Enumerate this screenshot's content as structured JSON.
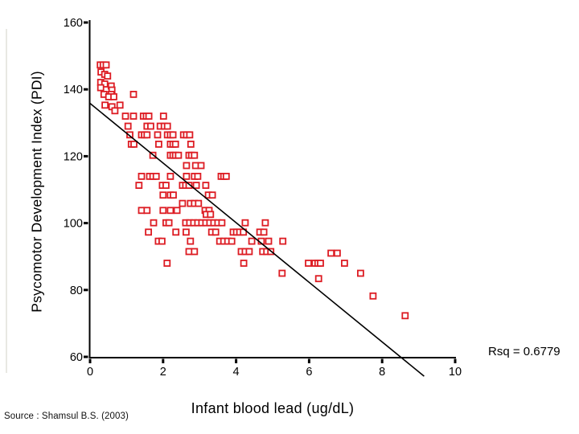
{
  "page": {
    "source_note": "Source : Shamsul B.S. (2003)",
    "background": "#ffffff"
  },
  "chart_data": {
    "type": "scatter",
    "title": "",
    "xlabel": "Infant blood lead (ug/dL)",
    "ylabel": "Psycomotor Development Index (PDI)",
    "annotation": "Rsq = 0.6779",
    "xlim": [
      0,
      10
    ],
    "ylim": [
      60,
      160
    ],
    "xticks": [
      0,
      2,
      4,
      6,
      8,
      10
    ],
    "yticks": [
      60,
      80,
      100,
      120,
      140,
      160
    ],
    "grid": "off",
    "legend": "none",
    "marker": {
      "shape": "open-square",
      "color": "#dd1c23",
      "fill": "#ffffff",
      "size": 7
    },
    "axis_color": "#000000",
    "regression_line": {
      "x": [
        0,
        9.15
      ],
      "y": [
        135.8,
        54.2
      ],
      "color": "#000000"
    },
    "points": [
      [
        0.28,
        147.3
      ],
      [
        0.36,
        147.3
      ],
      [
        0.44,
        147.3
      ],
      [
        0.3,
        145.2
      ],
      [
        0.4,
        144.5
      ],
      [
        0.48,
        144.0
      ],
      [
        0.29,
        142.1
      ],
      [
        0.4,
        141.6
      ],
      [
        0.58,
        141.0
      ],
      [
        0.29,
        140.5
      ],
      [
        0.6,
        139.8
      ],
      [
        0.38,
        138.5
      ],
      [
        0.58,
        138.5
      ],
      [
        1.19,
        138.5
      ],
      [
        0.51,
        137.8
      ],
      [
        0.65,
        137.8
      ],
      [
        0.41,
        135.3
      ],
      [
        0.82,
        135.3
      ],
      [
        0.6,
        134.8
      ],
      [
        0.68,
        133.6
      ],
      [
        0.97,
        132.0
      ],
      [
        1.19,
        132.0
      ],
      [
        1.46,
        132.0
      ],
      [
        1.54,
        132.0
      ],
      [
        1.61,
        132.0
      ],
      [
        2.01,
        132.0
      ],
      [
        1.04,
        129.0
      ],
      [
        1.56,
        129.0
      ],
      [
        1.66,
        129.0
      ],
      [
        1.92,
        129.0
      ],
      [
        2.03,
        129.0
      ],
      [
        2.12,
        129.0
      ],
      [
        1.09,
        126.4
      ],
      [
        1.41,
        126.4
      ],
      [
        1.49,
        126.4
      ],
      [
        1.56,
        126.4
      ],
      [
        1.85,
        126.4
      ],
      [
        2.12,
        126.4
      ],
      [
        2.2,
        126.4
      ],
      [
        2.27,
        126.4
      ],
      [
        2.56,
        126.4
      ],
      [
        2.64,
        126.4
      ],
      [
        2.73,
        126.4
      ],
      [
        1.13,
        123.6
      ],
      [
        1.2,
        123.6
      ],
      [
        1.88,
        123.6
      ],
      [
        2.2,
        123.6
      ],
      [
        2.27,
        123.6
      ],
      [
        2.34,
        123.6
      ],
      [
        2.76,
        123.6
      ],
      [
        1.72,
        120.3
      ],
      [
        2.2,
        120.3
      ],
      [
        2.27,
        120.3
      ],
      [
        2.34,
        120.3
      ],
      [
        2.42,
        120.3
      ],
      [
        2.71,
        120.3
      ],
      [
        2.78,
        120.3
      ],
      [
        2.86,
        120.3
      ],
      [
        2.64,
        117.2
      ],
      [
        2.89,
        117.2
      ],
      [
        3.04,
        117.2
      ],
      [
        1.41,
        114.0
      ],
      [
        1.63,
        114.0
      ],
      [
        1.72,
        114.0
      ],
      [
        1.81,
        114.0
      ],
      [
        2.2,
        114.0
      ],
      [
        2.64,
        114.0
      ],
      [
        2.86,
        114.0
      ],
      [
        2.95,
        114.0
      ],
      [
        3.59,
        114.0
      ],
      [
        3.66,
        114.0
      ],
      [
        3.73,
        114.0
      ],
      [
        1.34,
        111.3
      ],
      [
        1.98,
        111.3
      ],
      [
        2.08,
        111.3
      ],
      [
        2.53,
        111.3
      ],
      [
        2.62,
        111.3
      ],
      [
        2.71,
        111.3
      ],
      [
        2.91,
        111.3
      ],
      [
        3.17,
        111.3
      ],
      [
        2.0,
        108.4
      ],
      [
        2.2,
        108.4
      ],
      [
        2.28,
        108.4
      ],
      [
        3.24,
        108.4
      ],
      [
        3.35,
        108.4
      ],
      [
        2.53,
        105.9
      ],
      [
        2.75,
        105.9
      ],
      [
        2.86,
        105.9
      ],
      [
        2.97,
        105.9
      ],
      [
        1.41,
        103.8
      ],
      [
        1.56,
        103.8
      ],
      [
        2.0,
        103.8
      ],
      [
        2.2,
        103.8
      ],
      [
        2.38,
        103.8
      ],
      [
        3.15,
        103.8
      ],
      [
        3.26,
        103.8
      ],
      [
        3.18,
        102.6
      ],
      [
        3.3,
        102.6
      ],
      [
        1.74,
        100.1
      ],
      [
        2.08,
        100.1
      ],
      [
        2.16,
        100.1
      ],
      [
        2.62,
        100.1
      ],
      [
        2.73,
        100.1
      ],
      [
        2.84,
        100.1
      ],
      [
        2.95,
        100.1
      ],
      [
        3.06,
        100.1
      ],
      [
        3.17,
        100.1
      ],
      [
        3.28,
        100.1
      ],
      [
        3.39,
        100.1
      ],
      [
        3.5,
        100.1
      ],
      [
        3.61,
        100.1
      ],
      [
        4.25,
        100.1
      ],
      [
        4.8,
        100.1
      ],
      [
        1.6,
        97.3
      ],
      [
        2.35,
        97.3
      ],
      [
        2.63,
        97.3
      ],
      [
        3.33,
        97.3
      ],
      [
        3.44,
        97.3
      ],
      [
        3.92,
        97.3
      ],
      [
        4.01,
        97.3
      ],
      [
        4.1,
        97.3
      ],
      [
        4.2,
        97.3
      ],
      [
        4.65,
        97.3
      ],
      [
        4.76,
        97.3
      ],
      [
        1.87,
        94.6
      ],
      [
        1.97,
        94.6
      ],
      [
        2.75,
        94.6
      ],
      [
        3.55,
        94.6
      ],
      [
        3.66,
        94.6
      ],
      [
        3.77,
        94.6
      ],
      [
        3.88,
        94.6
      ],
      [
        4.43,
        94.6
      ],
      [
        4.69,
        94.6
      ],
      [
        4.89,
        94.6
      ],
      [
        5.28,
        94.6
      ],
      [
        2.71,
        91.5
      ],
      [
        2.86,
        91.5
      ],
      [
        4.14,
        91.5
      ],
      [
        4.25,
        91.5
      ],
      [
        4.36,
        91.5
      ],
      [
        4.73,
        91.5
      ],
      [
        4.84,
        91.5
      ],
      [
        4.95,
        91.5
      ],
      [
        6.6,
        91.0
      ],
      [
        6.77,
        91.0
      ],
      [
        2.11,
        88.0
      ],
      [
        4.21,
        88.0
      ],
      [
        5.98,
        88.0
      ],
      [
        6.16,
        88.0
      ],
      [
        6.24,
        88.0
      ],
      [
        6.31,
        88.0
      ],
      [
        6.97,
        88.0
      ],
      [
        5.26,
        85.0
      ],
      [
        7.41,
        85.0
      ],
      [
        6.26,
        83.4
      ],
      [
        7.75,
        78.2
      ],
      [
        8.63,
        72.3
      ]
    ]
  }
}
